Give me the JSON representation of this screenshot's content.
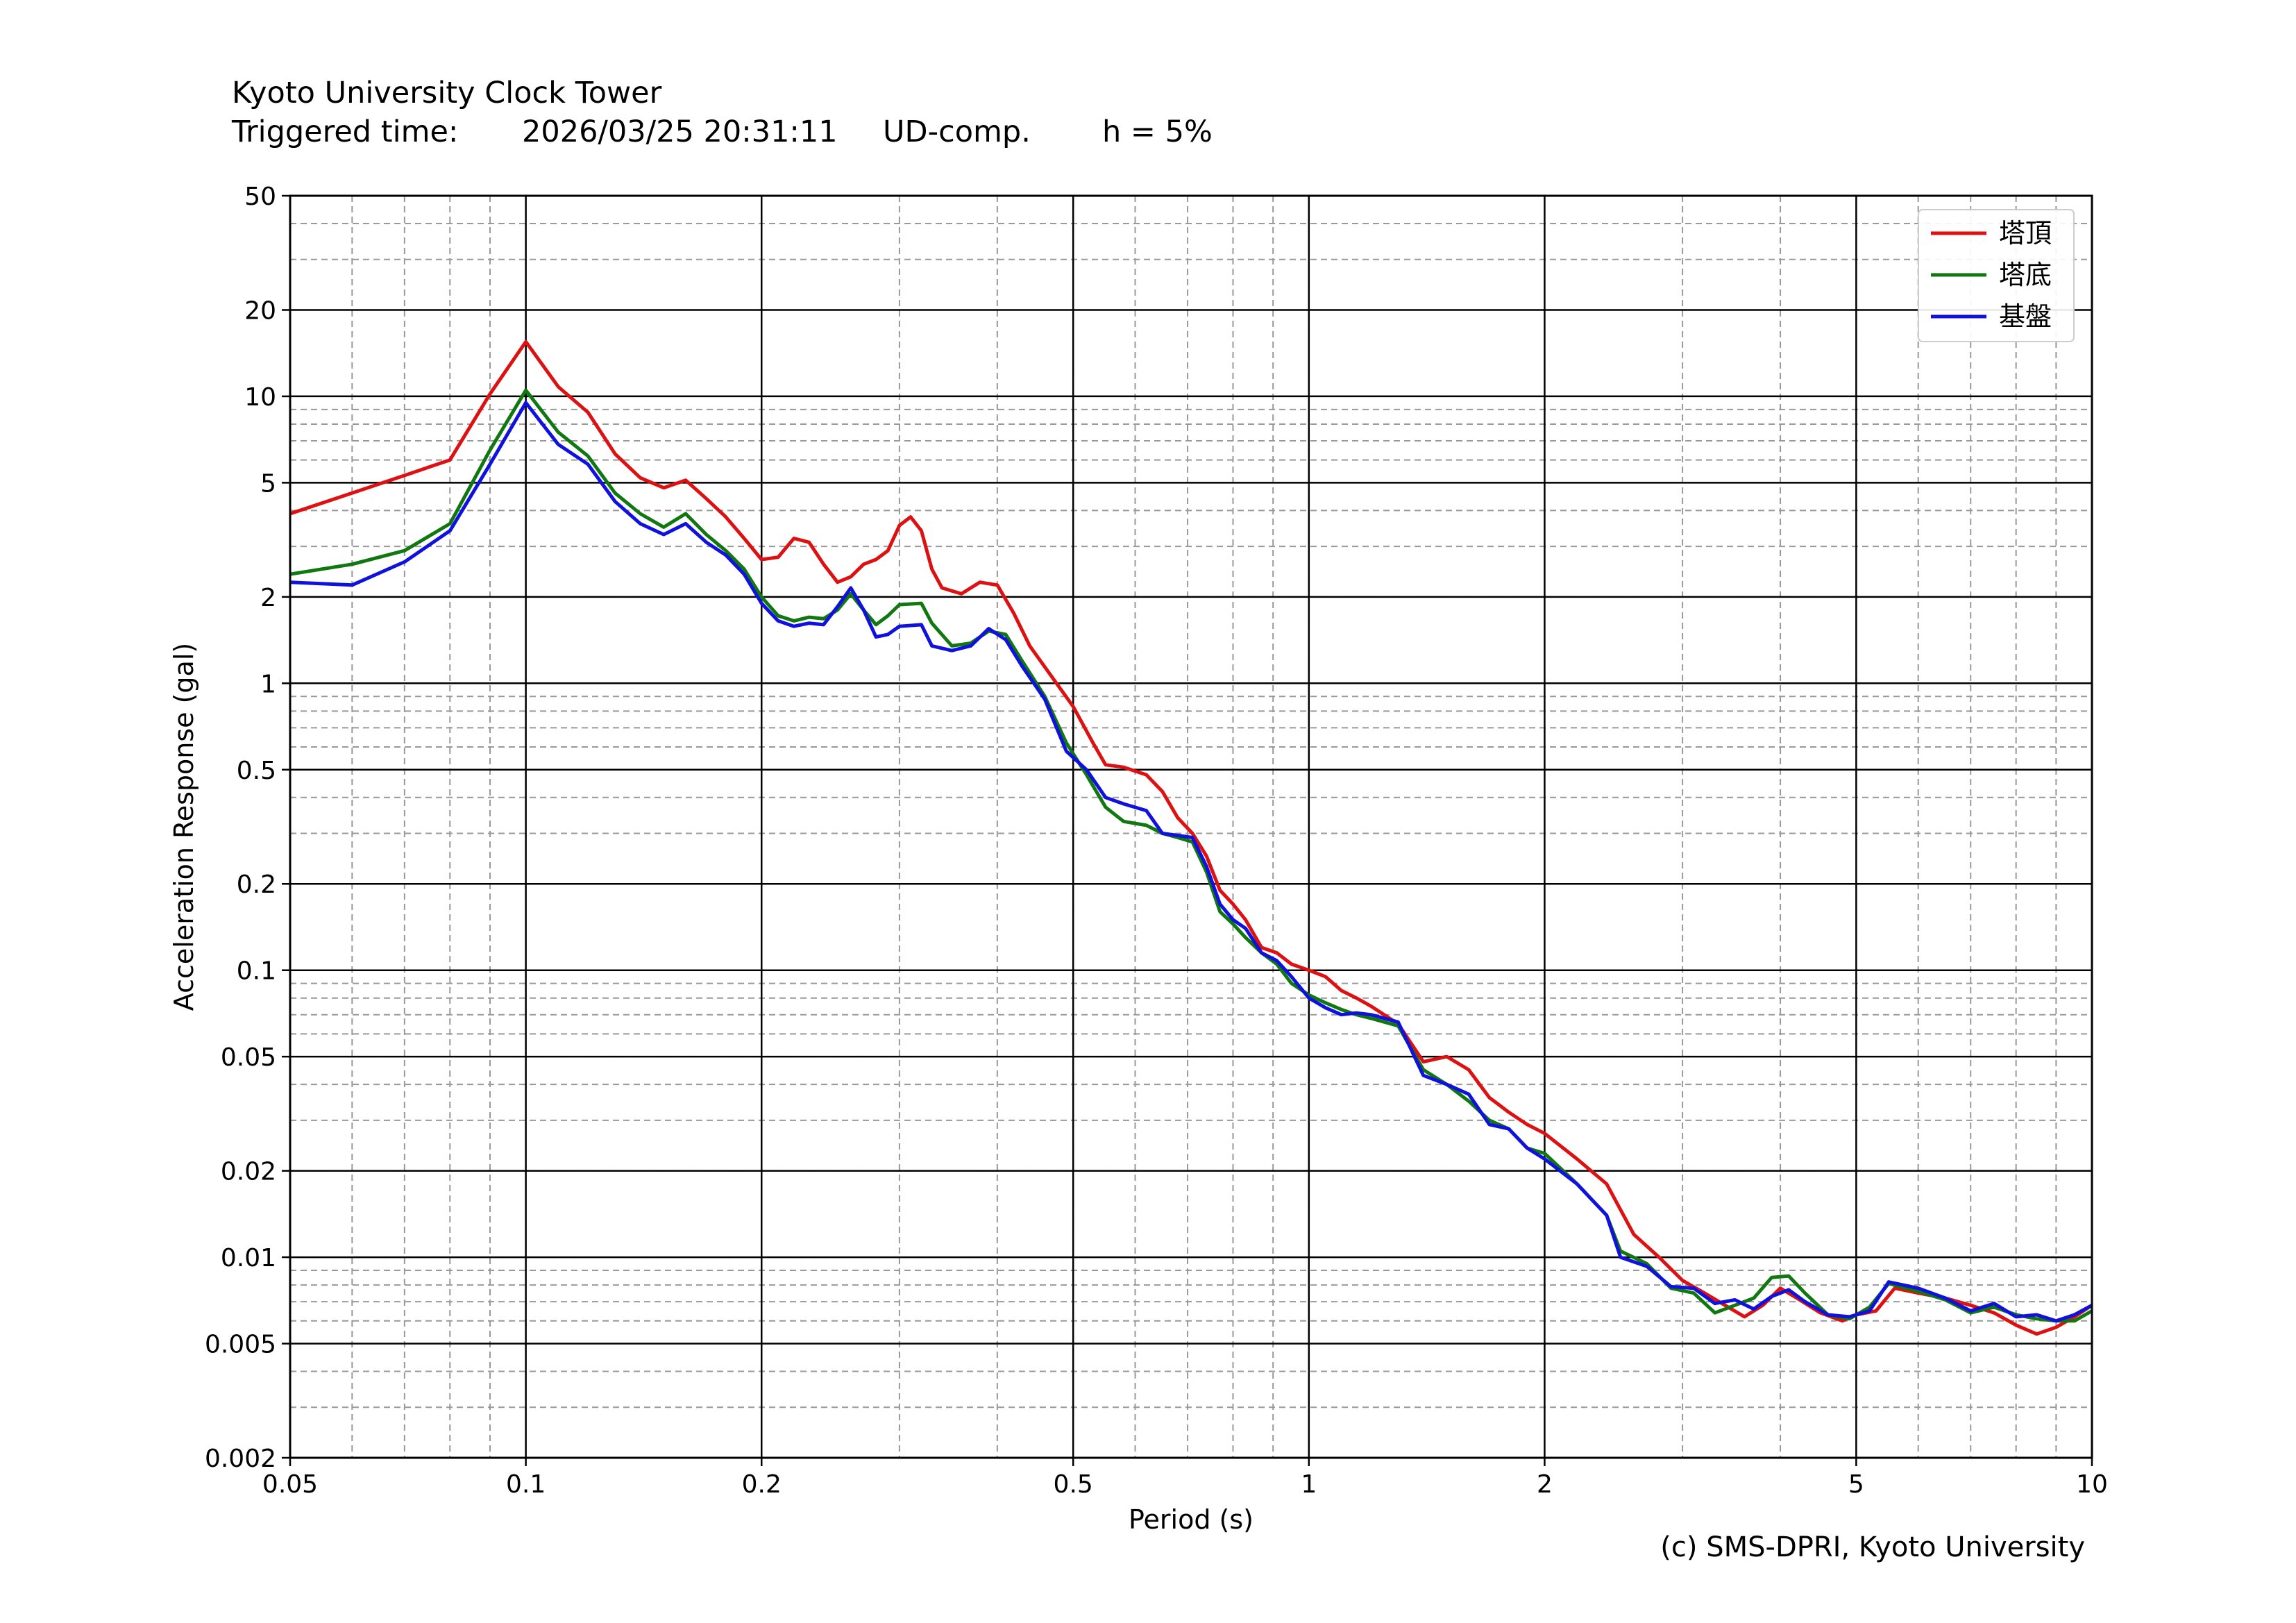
{
  "header": {
    "title": "Kyoto University Clock Tower",
    "trigger_label": "Triggered time:",
    "trigger_time": "2026/03/25 20:31:11",
    "component": "UD-comp.",
    "damping": "h = 5%"
  },
  "credit": "(c) SMS-DPRI, Kyoto University",
  "colors": {
    "red": "#dd1111",
    "green": "#117711",
    "blue": "#1111dd"
  },
  "chart_data": {
    "type": "line",
    "title": "",
    "xlabel": "Period (s)",
    "ylabel": "Acceleration Response (gal)",
    "xscale": "log",
    "yscale": "log",
    "xlim": [
      0.05,
      10
    ],
    "ylim": [
      0.002,
      50
    ],
    "grid": true,
    "legend_position": "top-right",
    "x_ticks": [
      {
        "v": 0.05,
        "label": "0.05"
      },
      {
        "v": 0.1,
        "label": "0.1"
      },
      {
        "v": 0.2,
        "label": "0.2"
      },
      {
        "v": 0.5,
        "label": "0.5"
      },
      {
        "v": 1,
        "label": "1"
      },
      {
        "v": 2,
        "label": "2"
      },
      {
        "v": 5,
        "label": "5"
      },
      {
        "v": 10,
        "label": "10"
      }
    ],
    "y_ticks": [
      {
        "v": 0.002,
        "label": "0.002"
      },
      {
        "v": 0.005,
        "label": "0.005"
      },
      {
        "v": 0.01,
        "label": "0.01"
      },
      {
        "v": 0.02,
        "label": "0.02"
      },
      {
        "v": 0.05,
        "label": "0.05"
      },
      {
        "v": 0.1,
        "label": "0.1"
      },
      {
        "v": 0.2,
        "label": "0.2"
      },
      {
        "v": 0.5,
        "label": "0.5"
      },
      {
        "v": 1,
        "label": "1"
      },
      {
        "v": 2,
        "label": "2"
      },
      {
        "v": 5,
        "label": "5"
      },
      {
        "v": 10,
        "label": "10"
      },
      {
        "v": 20,
        "label": "20"
      },
      {
        "v": 50,
        "label": "50"
      }
    ],
    "series": [
      {
        "name": "塔頂",
        "color": "#dd1111",
        "points": [
          [
            0.05,
            3.9
          ],
          [
            0.06,
            4.6
          ],
          [
            0.07,
            5.3
          ],
          [
            0.08,
            6.0
          ],
          [
            0.09,
            10.2
          ],
          [
            0.1,
            15.5
          ],
          [
            0.11,
            10.8
          ],
          [
            0.12,
            8.8
          ],
          [
            0.13,
            6.3
          ],
          [
            0.14,
            5.2
          ],
          [
            0.15,
            4.8
          ],
          [
            0.16,
            5.1
          ],
          [
            0.17,
            4.4
          ],
          [
            0.18,
            3.8
          ],
          [
            0.19,
            3.2
          ],
          [
            0.2,
            2.7
          ],
          [
            0.21,
            2.75
          ],
          [
            0.22,
            3.2
          ],
          [
            0.23,
            3.1
          ],
          [
            0.24,
            2.6
          ],
          [
            0.25,
            2.25
          ],
          [
            0.26,
            2.35
          ],
          [
            0.27,
            2.6
          ],
          [
            0.28,
            2.7
          ],
          [
            0.29,
            2.9
          ],
          [
            0.3,
            3.55
          ],
          [
            0.31,
            3.8
          ],
          [
            0.32,
            3.4
          ],
          [
            0.33,
            2.5
          ],
          [
            0.34,
            2.15
          ],
          [
            0.36,
            2.05
          ],
          [
            0.38,
            2.25
          ],
          [
            0.4,
            2.2
          ],
          [
            0.42,
            1.75
          ],
          [
            0.44,
            1.35
          ],
          [
            0.47,
            1.05
          ],
          [
            0.5,
            0.83
          ],
          [
            0.53,
            0.62
          ],
          [
            0.55,
            0.52
          ],
          [
            0.58,
            0.51
          ],
          [
            0.62,
            0.48
          ],
          [
            0.65,
            0.42
          ],
          [
            0.68,
            0.34
          ],
          [
            0.71,
            0.3
          ],
          [
            0.74,
            0.25
          ],
          [
            0.77,
            0.19
          ],
          [
            0.8,
            0.17
          ],
          [
            0.83,
            0.15
          ],
          [
            0.87,
            0.12
          ],
          [
            0.91,
            0.115
          ],
          [
            0.95,
            0.105
          ],
          [
            1.0,
            0.1
          ],
          [
            1.05,
            0.095
          ],
          [
            1.1,
            0.085
          ],
          [
            1.15,
            0.08
          ],
          [
            1.2,
            0.075
          ],
          [
            1.3,
            0.065
          ],
          [
            1.4,
            0.048
          ],
          [
            1.5,
            0.05
          ],
          [
            1.6,
            0.045
          ],
          [
            1.7,
            0.036
          ],
          [
            1.8,
            0.032
          ],
          [
            1.9,
            0.029
          ],
          [
            2.0,
            0.027
          ],
          [
            2.2,
            0.022
          ],
          [
            2.4,
            0.018
          ],
          [
            2.6,
            0.012
          ],
          [
            2.8,
            0.01
          ],
          [
            3.0,
            0.0083
          ],
          [
            3.2,
            0.0075
          ],
          [
            3.4,
            0.0068
          ],
          [
            3.6,
            0.0062
          ],
          [
            3.8,
            0.0068
          ],
          [
            4.0,
            0.0078
          ],
          [
            4.2,
            0.0072
          ],
          [
            4.5,
            0.0064
          ],
          [
            4.8,
            0.006
          ],
          [
            5.0,
            0.0063
          ],
          [
            5.3,
            0.0065
          ],
          [
            5.6,
            0.0078
          ],
          [
            6.0,
            0.0075
          ],
          [
            6.5,
            0.0072
          ],
          [
            7.0,
            0.0068
          ],
          [
            7.5,
            0.0064
          ],
          [
            8.0,
            0.0058
          ],
          [
            8.5,
            0.0054
          ],
          [
            9.0,
            0.0057
          ],
          [
            9.5,
            0.0062
          ],
          [
            10.0,
            0.0068
          ]
        ]
      },
      {
        "name": "塔底",
        "color": "#117711",
        "points": [
          [
            0.05,
            2.4
          ],
          [
            0.06,
            2.6
          ],
          [
            0.07,
            2.9
          ],
          [
            0.08,
            3.6
          ],
          [
            0.09,
            6.5
          ],
          [
            0.1,
            10.5
          ],
          [
            0.11,
            7.5
          ],
          [
            0.12,
            6.2
          ],
          [
            0.13,
            4.6
          ],
          [
            0.14,
            3.9
          ],
          [
            0.15,
            3.5
          ],
          [
            0.16,
            3.9
          ],
          [
            0.17,
            3.3
          ],
          [
            0.18,
            2.9
          ],
          [
            0.19,
            2.5
          ],
          [
            0.2,
            2.0
          ],
          [
            0.21,
            1.72
          ],
          [
            0.22,
            1.65
          ],
          [
            0.23,
            1.7
          ],
          [
            0.24,
            1.68
          ],
          [
            0.25,
            1.8
          ],
          [
            0.26,
            2.05
          ],
          [
            0.27,
            1.8
          ],
          [
            0.28,
            1.6
          ],
          [
            0.29,
            1.72
          ],
          [
            0.3,
            1.88
          ],
          [
            0.32,
            1.9
          ],
          [
            0.33,
            1.62
          ],
          [
            0.35,
            1.35
          ],
          [
            0.37,
            1.38
          ],
          [
            0.39,
            1.52
          ],
          [
            0.41,
            1.48
          ],
          [
            0.43,
            1.2
          ],
          [
            0.46,
            0.9
          ],
          [
            0.49,
            0.62
          ],
          [
            0.52,
            0.48
          ],
          [
            0.55,
            0.37
          ],
          [
            0.58,
            0.33
          ],
          [
            0.62,
            0.32
          ],
          [
            0.65,
            0.3
          ],
          [
            0.68,
            0.29
          ],
          [
            0.71,
            0.28
          ],
          [
            0.74,
            0.22
          ],
          [
            0.77,
            0.16
          ],
          [
            0.8,
            0.145
          ],
          [
            0.83,
            0.13
          ],
          [
            0.87,
            0.115
          ],
          [
            0.91,
            0.105
          ],
          [
            0.95,
            0.09
          ],
          [
            1.0,
            0.082
          ],
          [
            1.05,
            0.077
          ],
          [
            1.1,
            0.073
          ],
          [
            1.15,
            0.07
          ],
          [
            1.2,
            0.068
          ],
          [
            1.3,
            0.064
          ],
          [
            1.4,
            0.045
          ],
          [
            1.5,
            0.04
          ],
          [
            1.6,
            0.035
          ],
          [
            1.7,
            0.03
          ],
          [
            1.8,
            0.028
          ],
          [
            1.9,
            0.024
          ],
          [
            2.0,
            0.023
          ],
          [
            2.2,
            0.018
          ],
          [
            2.4,
            0.014
          ],
          [
            2.5,
            0.0105
          ],
          [
            2.7,
            0.0095
          ],
          [
            2.9,
            0.0078
          ],
          [
            3.1,
            0.0075
          ],
          [
            3.3,
            0.0064
          ],
          [
            3.5,
            0.0068
          ],
          [
            3.7,
            0.0072
          ],
          [
            3.9,
            0.0085
          ],
          [
            4.1,
            0.0086
          ],
          [
            4.3,
            0.0075
          ],
          [
            4.6,
            0.0063
          ],
          [
            4.9,
            0.0061
          ],
          [
            5.2,
            0.0067
          ],
          [
            5.5,
            0.0081
          ],
          [
            6.0,
            0.0076
          ],
          [
            6.5,
            0.0071
          ],
          [
            7.0,
            0.0064
          ],
          [
            7.5,
            0.0067
          ],
          [
            8.0,
            0.0063
          ],
          [
            8.5,
            0.0061
          ],
          [
            9.0,
            0.006
          ],
          [
            9.5,
            0.006
          ],
          [
            10.0,
            0.0065
          ]
        ]
      },
      {
        "name": "基盤",
        "color": "#1111dd",
        "points": [
          [
            0.05,
            2.25
          ],
          [
            0.06,
            2.2
          ],
          [
            0.07,
            2.65
          ],
          [
            0.08,
            3.4
          ],
          [
            0.09,
            5.8
          ],
          [
            0.1,
            9.5
          ],
          [
            0.11,
            6.8
          ],
          [
            0.12,
            5.8
          ],
          [
            0.13,
            4.3
          ],
          [
            0.14,
            3.6
          ],
          [
            0.15,
            3.3
          ],
          [
            0.16,
            3.6
          ],
          [
            0.17,
            3.1
          ],
          [
            0.18,
            2.8
          ],
          [
            0.19,
            2.4
          ],
          [
            0.2,
            1.9
          ],
          [
            0.21,
            1.65
          ],
          [
            0.22,
            1.58
          ],
          [
            0.23,
            1.62
          ],
          [
            0.24,
            1.6
          ],
          [
            0.25,
            1.85
          ],
          [
            0.26,
            2.15
          ],
          [
            0.27,
            1.8
          ],
          [
            0.28,
            1.45
          ],
          [
            0.29,
            1.48
          ],
          [
            0.3,
            1.58
          ],
          [
            0.32,
            1.6
          ],
          [
            0.33,
            1.35
          ],
          [
            0.35,
            1.3
          ],
          [
            0.37,
            1.35
          ],
          [
            0.39,
            1.55
          ],
          [
            0.41,
            1.42
          ],
          [
            0.43,
            1.15
          ],
          [
            0.46,
            0.88
          ],
          [
            0.49,
            0.58
          ],
          [
            0.52,
            0.5
          ],
          [
            0.55,
            0.4
          ],
          [
            0.58,
            0.38
          ],
          [
            0.62,
            0.36
          ],
          [
            0.65,
            0.3
          ],
          [
            0.68,
            0.295
          ],
          [
            0.71,
            0.29
          ],
          [
            0.74,
            0.23
          ],
          [
            0.77,
            0.17
          ],
          [
            0.8,
            0.15
          ],
          [
            0.83,
            0.14
          ],
          [
            0.87,
            0.115
          ],
          [
            0.91,
            0.108
          ],
          [
            0.95,
            0.095
          ],
          [
            1.0,
            0.08
          ],
          [
            1.05,
            0.074
          ],
          [
            1.1,
            0.07
          ],
          [
            1.15,
            0.071
          ],
          [
            1.2,
            0.07
          ],
          [
            1.3,
            0.066
          ],
          [
            1.4,
            0.043
          ],
          [
            1.5,
            0.04
          ],
          [
            1.6,
            0.037
          ],
          [
            1.7,
            0.029
          ],
          [
            1.8,
            0.028
          ],
          [
            1.9,
            0.024
          ],
          [
            2.0,
            0.022
          ],
          [
            2.2,
            0.018
          ],
          [
            2.4,
            0.014
          ],
          [
            2.5,
            0.01
          ],
          [
            2.7,
            0.0093
          ],
          [
            2.9,
            0.0079
          ],
          [
            3.1,
            0.0078
          ],
          [
            3.3,
            0.0069
          ],
          [
            3.5,
            0.0071
          ],
          [
            3.7,
            0.0066
          ],
          [
            3.9,
            0.0073
          ],
          [
            4.1,
            0.0077
          ],
          [
            4.3,
            0.007
          ],
          [
            4.6,
            0.0063
          ],
          [
            4.9,
            0.0062
          ],
          [
            5.2,
            0.0065
          ],
          [
            5.5,
            0.0082
          ],
          [
            6.0,
            0.0078
          ],
          [
            6.5,
            0.0072
          ],
          [
            7.0,
            0.0065
          ],
          [
            7.5,
            0.0069
          ],
          [
            8.0,
            0.0062
          ],
          [
            8.5,
            0.0063
          ],
          [
            9.0,
            0.006
          ],
          [
            9.5,
            0.0063
          ],
          [
            10.0,
            0.0068
          ]
        ]
      }
    ]
  }
}
